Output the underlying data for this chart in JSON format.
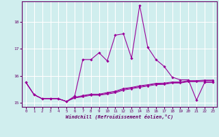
{
  "x": [
    0,
    1,
    2,
    3,
    4,
    5,
    6,
    7,
    8,
    9,
    10,
    11,
    12,
    13,
    14,
    15,
    16,
    17,
    18,
    19,
    20,
    21,
    22,
    23
  ],
  "line1": [
    15.75,
    15.3,
    15.15,
    15.15,
    15.15,
    15.05,
    15.25,
    16.6,
    16.6,
    16.85,
    16.55,
    17.5,
    17.55,
    16.65,
    18.6,
    17.05,
    16.6,
    16.35,
    15.95,
    15.85,
    15.85,
    15.1,
    15.75,
    15.75
  ],
  "line2": [
    15.75,
    15.3,
    15.15,
    15.15,
    15.15,
    15.05,
    15.2,
    15.25,
    15.3,
    15.3,
    15.35,
    15.4,
    15.5,
    15.55,
    15.6,
    15.65,
    15.7,
    15.7,
    15.75,
    15.75,
    15.8,
    15.8,
    15.82,
    15.82
  ],
  "line3": [
    15.75,
    15.3,
    15.15,
    15.15,
    15.15,
    15.05,
    15.2,
    15.27,
    15.32,
    15.32,
    15.38,
    15.43,
    15.53,
    15.57,
    15.63,
    15.67,
    15.72,
    15.73,
    15.77,
    15.77,
    15.82,
    15.82,
    15.84,
    15.84
  ],
  "line4": [
    15.75,
    15.3,
    15.15,
    15.15,
    15.15,
    15.05,
    15.18,
    15.22,
    15.28,
    15.28,
    15.32,
    15.37,
    15.47,
    15.52,
    15.57,
    15.62,
    15.67,
    15.68,
    15.73,
    15.73,
    15.78,
    15.78,
    15.79,
    15.79
  ],
  "line_color": "#990099",
  "bg_color": "#d0eeee",
  "grid_color": "#ffffff",
  "xlabel": "Windchill (Refroidissement éolien,°C)",
  "ylim": [
    14.85,
    18.75
  ],
  "yticks": [
    15,
    16,
    17,
    18
  ],
  "xlim": [
    -0.5,
    23.5
  ],
  "xticks": [
    0,
    1,
    2,
    3,
    4,
    5,
    6,
    7,
    8,
    9,
    10,
    11,
    12,
    13,
    14,
    15,
    16,
    17,
    18,
    19,
    20,
    21,
    22,
    23
  ]
}
